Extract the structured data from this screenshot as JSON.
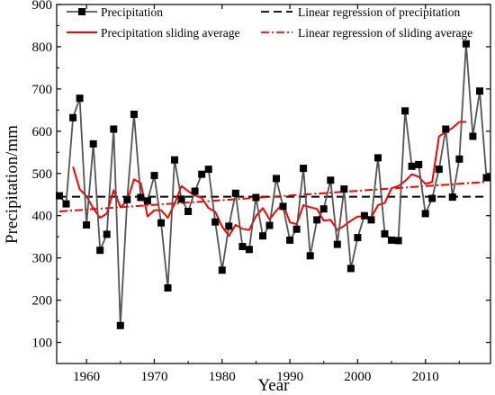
{
  "chart_data": {
    "type": "line",
    "xlabel": "Year",
    "ylabel": "Precipitation/mm",
    "xlim": [
      1955.6,
      2019.6
    ],
    "ylim": [
      50,
      900
    ],
    "x_ticks": [
      1960,
      1970,
      1980,
      1990,
      2000,
      2010
    ],
    "y_ticks": [
      100,
      200,
      300,
      400,
      500,
      600,
      700,
      800,
      900
    ],
    "legend_position": "top",
    "series": [
      {
        "name": "Precipitation",
        "style": "line-with-square-markers",
        "color": "#555555",
        "marker_color": "#000000",
        "x": [
          1956,
          1957,
          1958,
          1959,
          1960,
          1961,
          1962,
          1963,
          1964,
          1965,
          1966,
          1967,
          1968,
          1969,
          1970,
          1971,
          1972,
          1973,
          1974,
          1975,
          1976,
          1977,
          1978,
          1979,
          1980,
          1981,
          1982,
          1983,
          1984,
          1985,
          1986,
          1987,
          1988,
          1989,
          1990,
          1991,
          1992,
          1993,
          1994,
          1995,
          1996,
          1997,
          1998,
          1999,
          2000,
          2001,
          2002,
          2003,
          2004,
          2005,
          2006,
          2007,
          2008,
          2009,
          2010,
          2011,
          2012,
          2013,
          2014,
          2015,
          2016,
          2017,
          2018,
          2019
        ],
        "y": [
          447,
          428,
          632,
          678,
          378,
          570,
          318,
          356,
          605,
          140,
          438,
          640,
          443,
          435,
          495,
          383,
          229,
          532,
          439,
          410,
          458,
          498,
          510,
          385,
          271,
          375,
          453,
          327,
          320,
          443,
          352,
          377,
          488,
          422,
          342,
          368,
          512,
          305,
          390,
          416,
          484,
          332,
          463,
          275,
          348,
          400,
          390,
          537,
          357,
          342,
          341,
          648,
          517,
          521,
          405,
          441,
          510,
          605,
          444,
          534,
          807,
          588,
          695,
          490
        ]
      },
      {
        "name": "Precipitation sliding average",
        "style": "solid",
        "color": "#ff0000",
        "x": [
          1958,
          1959,
          1960,
          1961,
          1962,
          1963,
          1964,
          1965,
          1966,
          1967,
          1968,
          1969,
          1970,
          1971,
          1972,
          1973,
          1974,
          1975,
          1976,
          1977,
          1978,
          1979,
          1980,
          1981,
          1982,
          1983,
          1984,
          1985,
          1986,
          1987,
          1988,
          1989,
          1990,
          1991,
          1992,
          1993,
          1994,
          1995,
          1996,
          1997,
          1998,
          1999,
          2000,
          2001,
          2002,
          2003,
          2004,
          2005,
          2006,
          2007,
          2008,
          2009,
          2010,
          2011,
          2012,
          2013,
          2014,
          2015,
          2016
        ],
        "y": [
          516,
          462,
          446,
          417,
          395,
          405,
          460,
          420,
          435,
          486,
          477,
          398,
          413,
          413,
          395,
          428,
          470,
          458,
          448,
          442,
          418,
          409,
          374,
          352,
          378,
          369,
          366,
          399,
          418,
          391,
          412,
          428,
          384,
          380,
          425,
          420,
          416,
          388,
          390,
          366,
          376,
          388,
          398,
          398,
          396,
          425,
          430,
          465,
          470,
          482,
          498,
          492,
          475,
          480,
          588,
          598,
          608,
          622,
          622
        ]
      },
      {
        "name": "Linear regression of precipitation",
        "style": "dashed",
        "color": "#000000",
        "x": [
          1956,
          2019
        ],
        "y": [
          445,
          445
        ]
      },
      {
        "name": "Linear regression of sliding average",
        "style": "dash-dot",
        "color": "#ff0000",
        "x": [
          1956,
          2019
        ],
        "y": [
          410,
          480
        ]
      }
    ]
  }
}
